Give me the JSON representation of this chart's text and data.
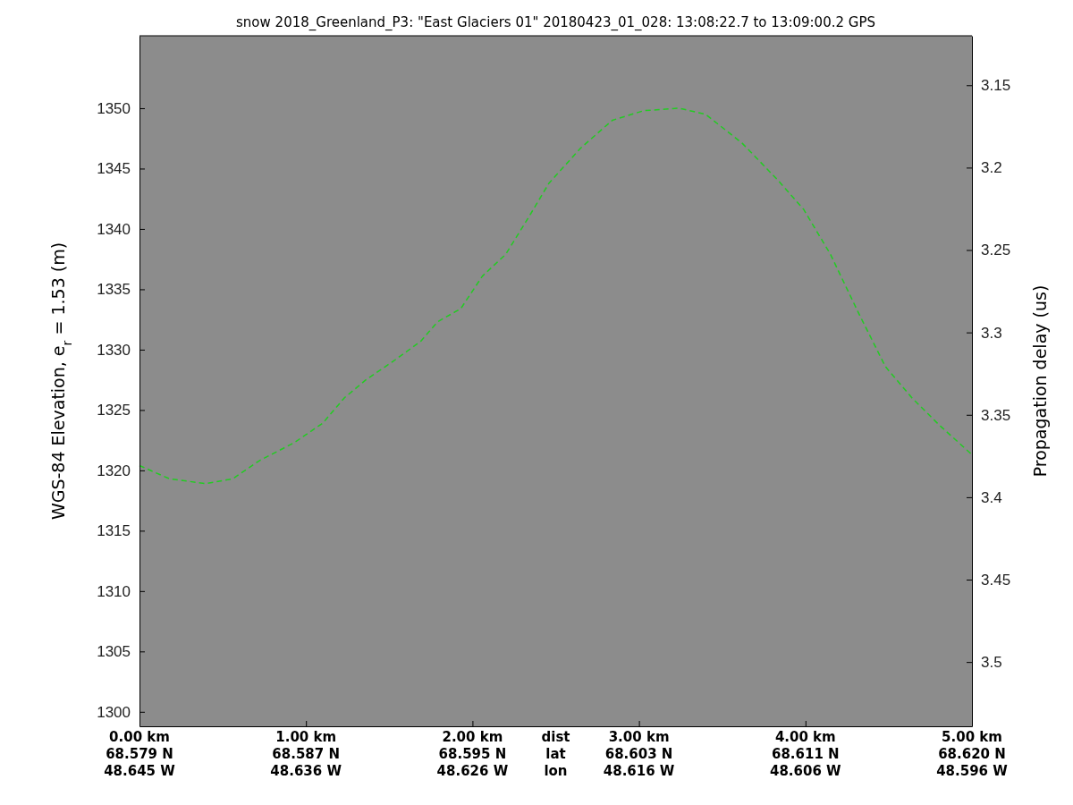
{
  "chart_data": {
    "type": "line",
    "title": "snow 2018_Greenland_P3: \"East Glaciers 01\"  20180423_01_028: 13:08:22.7 to 13:09:00.2 GPS",
    "ylabel": "WGS-84 Elevation, e$_{r}$ = 1.53 (m)",
    "y2label": "Propagation delay (us)",
    "x": [
      0,
      0.18,
      0.4,
      0.56,
      0.72,
      0.93,
      1.1,
      1.23,
      1.36,
      1.52,
      1.69,
      1.79,
      1.93,
      2.06,
      2.2,
      2.33,
      2.46,
      2.65,
      2.84,
      3.03,
      3.24,
      3.4,
      3.62,
      3.83,
      3.99,
      4.15,
      4.32,
      4.48,
      4.64,
      4.8,
      5
    ],
    "series": [
      {
        "color": "#22cc22",
        "values": [
          1320.4,
          1319.3,
          1318.9,
          1319.3,
          1320.8,
          1322.3,
          1323.9,
          1326.0,
          1327.5,
          1329.0,
          1330.7,
          1332.3,
          1333.4,
          1336.1,
          1337.9,
          1340.8,
          1343.8,
          1346.7,
          1349.0,
          1349.8,
          1350.0,
          1349.5,
          1347.1,
          1344.1,
          1341.6,
          1337.9,
          1333.0,
          1328.6,
          1326.0,
          1323.8,
          1321.3
        ]
      }
    ],
    "xlim": [
      0,
      5
    ],
    "xticks": [
      {
        "value": 0,
        "label": "0.00 km"
      },
      {
        "value": 1,
        "label": "1.00 km"
      },
      {
        "value": 2,
        "label": "2.00 km"
      },
      {
        "value": 3,
        "label": "3.00 km"
      },
      {
        "value": 4,
        "label": "4.00 km"
      },
      {
        "value": 5,
        "label": "5.00 km"
      }
    ],
    "ylim": [
      1298.8,
      1356
    ],
    "yticks": [
      1300,
      1305,
      1310,
      1315,
      1320,
      1325,
      1330,
      1335,
      1340,
      1345,
      1350
    ],
    "y2lim": [
      3.539,
      3.12
    ],
    "y2ticks": [
      3.15,
      3.2,
      3.25,
      3.3,
      3.35,
      3.4,
      3.45,
      3.5
    ],
    "annotations": [
      "dist\nlat\nlon",
      "68.579 N\n48.645 W",
      "68.587 N\n48.636 W",
      "68.595 N\n48.626 W",
      "68.603 N\n48.616 W",
      "68.611 N\n48.606 W",
      "68.620 N\n48.596 W"
    ],
    "line_style": "dashed",
    "marker": "none",
    "grid": false
  }
}
